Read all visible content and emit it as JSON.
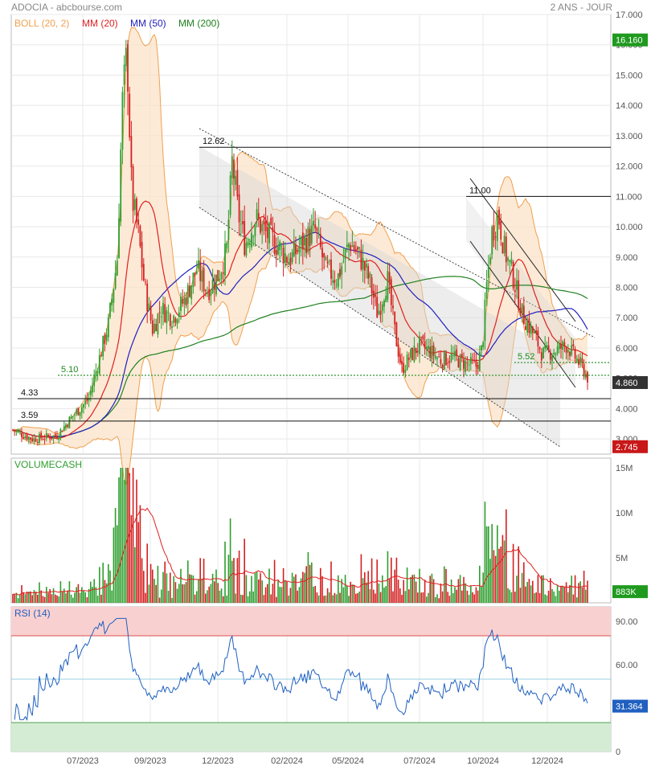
{
  "header": {
    "title": "ADOCIA - abcbourse.com",
    "period": "2 ANS - JOUR"
  },
  "colors": {
    "up": "#2e9e2e",
    "down": "#d42020",
    "boll": "#f0a050",
    "boll_fill": "#fbe3c8",
    "mm20": "#e02020",
    "mm50": "#2020c0",
    "mm200": "#208020",
    "rsi": "#2060c0",
    "volume_line": "#e02020",
    "badge_green": "#1f9a1f",
    "badge_dark": "#333333",
    "badge_red": "#c81818",
    "grid": "#e8e8e8"
  },
  "x_labels": [
    "07/2023",
    "09/2023",
    "12/2023",
    "02/2024",
    "05/2024",
    "07/2024",
    "10/2024",
    "12/2024"
  ],
  "panels": {
    "price": {
      "legend": [
        {
          "label": "BOLL (20, 2)",
          "color": "#f0a050"
        },
        {
          "label": "MM (20)",
          "color": "#e02020"
        },
        {
          "label": "MM (50)",
          "color": "#2020c0"
        },
        {
          "label": "MM (200)",
          "color": "#208020"
        }
      ],
      "y_ticks": [
        "17.000",
        "16.000",
        "15.000",
        "14.000",
        "13.000",
        "12.000",
        "11.000",
        "10.000",
        "9.000",
        "8.000",
        "7.000",
        "6.000",
        "5.000",
        "4.000",
        "3.000"
      ],
      "levels": [
        {
          "value": 12.62,
          "label": "12.62"
        },
        {
          "value": 11.0,
          "label": "11.00"
        },
        {
          "value": 4.33,
          "label": "4.33"
        },
        {
          "value": 3.59,
          "label": "3.59"
        }
      ],
      "dotted_levels": [
        {
          "value": 5.1,
          "label": "5.10"
        },
        {
          "value": 5.52,
          "label": "5.52"
        }
      ],
      "badges": [
        {
          "label": "16.160",
          "value": 16.16,
          "kind": "green"
        },
        {
          "label": "4.860",
          "value": 4.86,
          "kind": "dark"
        },
        {
          "label": "2.745",
          "value": 2.745,
          "kind": "red"
        }
      ]
    },
    "volume": {
      "title": "VOLUMECASH",
      "y_ticks": [
        "15M",
        "10M",
        "5M"
      ],
      "badge": "883K"
    },
    "rsi": {
      "title": "RSI (14)",
      "y_ticks": [
        "90.00",
        "60.00",
        "0"
      ],
      "badge": "31.364"
    }
  },
  "chart_data": {
    "type": "candlestick",
    "xlim": [
      "2023-05",
      "2025-01"
    ],
    "price_ylim": [
      2.5,
      17.0
    ],
    "close_series": {
      "name": "ADOCIA",
      "x": [
        "2023-05",
        "2023-06",
        "2023-07",
        "2023-08",
        "2023-08",
        "2023-09",
        "2023-10",
        "2023-11",
        "2023-12",
        "2023-12",
        "2024-01",
        "2024-02",
        "2024-03",
        "2024-04",
        "2024-05",
        "2024-06",
        "2024-07",
        "2024-08",
        "2024-09",
        "2024-10",
        "2024-10",
        "2024-11",
        "2024-12",
        "2025-01"
      ],
      "values": [
        3.3,
        3.0,
        3.9,
        6.5,
        14.8,
        7.5,
        7.2,
        8.2,
        8.0,
        11.8,
        9.5,
        9.8,
        8.5,
        8.8,
        9.2,
        8.3,
        5.3,
        5.6,
        5.4,
        8.9,
        10.4,
        7.3,
        6.0,
        4.86
      ]
    },
    "levels": [
      12.62,
      11.0,
      5.52,
      5.1,
      4.33,
      3.59
    ],
    "last_close": 4.86,
    "period_high": 16.16,
    "period_low": 2.745,
    "volume": {
      "ylim": [
        0,
        15000000
      ],
      "last": 883000,
      "peak": 15000000,
      "ylabel": "VOLUMECASH"
    },
    "rsi": {
      "period": 14,
      "ylim": [
        0,
        100
      ],
      "overbought": 80,
      "oversold": 20,
      "last": 31.364,
      "values": [
        50,
        35,
        75,
        55,
        88,
        60,
        40,
        50,
        55,
        72,
        48,
        52,
        45,
        48,
        50,
        40,
        35,
        45,
        50,
        85,
        55,
        45,
        40,
        31.364
      ]
    }
  }
}
